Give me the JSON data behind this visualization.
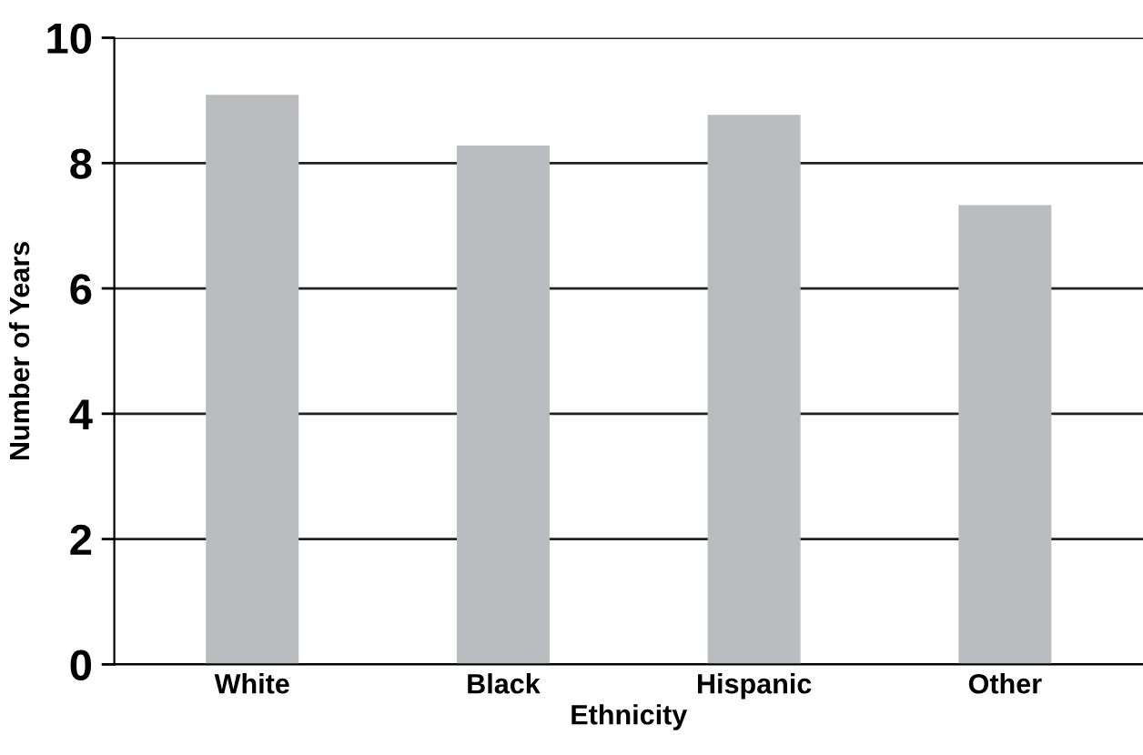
{
  "chart_data": {
    "type": "bar",
    "xlabel": "Ethnicity",
    "ylabel": "Number of Years",
    "categories": [
      "White",
      "Black",
      "Hispanic",
      "Other"
    ],
    "values": [
      9.09,
      8.28,
      8.77,
      7.33
    ],
    "color": "#bbbcc0",
    "ylim": [
      0,
      10
    ],
    "yticks": [
      0,
      2,
      4,
      6,
      8,
      10
    ],
    "grid": "y",
    "legend": false
  }
}
